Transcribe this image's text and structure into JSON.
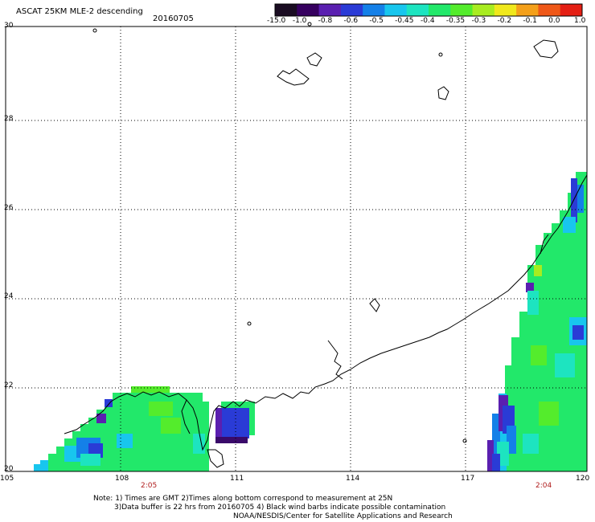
{
  "header": {
    "title": "ASCAT 25KM MLE-2 descending",
    "date": "20160705"
  },
  "colorbar": {
    "labels": [
      "-15.0",
      "-1.0",
      "-0.8",
      "-0.6",
      "-0.5",
      "-0.45",
      "-0.4",
      "-0.35",
      "-0.3",
      "-0.2",
      "-0.1",
      "0.0",
      "1.0"
    ],
    "colors": [
      "#1a0c22",
      "#36005f",
      "#5a1fb0",
      "#2a3bd6",
      "#1480e8",
      "#18c6ee",
      "#1de4c0",
      "#22e86a",
      "#54ec2c",
      "#a8ec20",
      "#f0e81c",
      "#f4a01a",
      "#ef5818",
      "#e41f14"
    ]
  },
  "map": {
    "lon_labels": [
      "105",
      "108",
      "111",
      "114",
      "117",
      "120"
    ],
    "lat_labels": [
      "30",
      "28",
      "26",
      "24",
      "22",
      "20"
    ],
    "pass_times": [
      "2:05",
      "2:04"
    ]
  },
  "notes": [
    "Note: 1) Times are GMT 2)Times along bottom correspond to measurement at 25N",
    "3)Data buffer is 22 hrs from 20160705 4) Black wind barbs indicate possible contamination",
    "NOAA/NESDIS/Center for Satellite Applications and Research"
  ]
}
